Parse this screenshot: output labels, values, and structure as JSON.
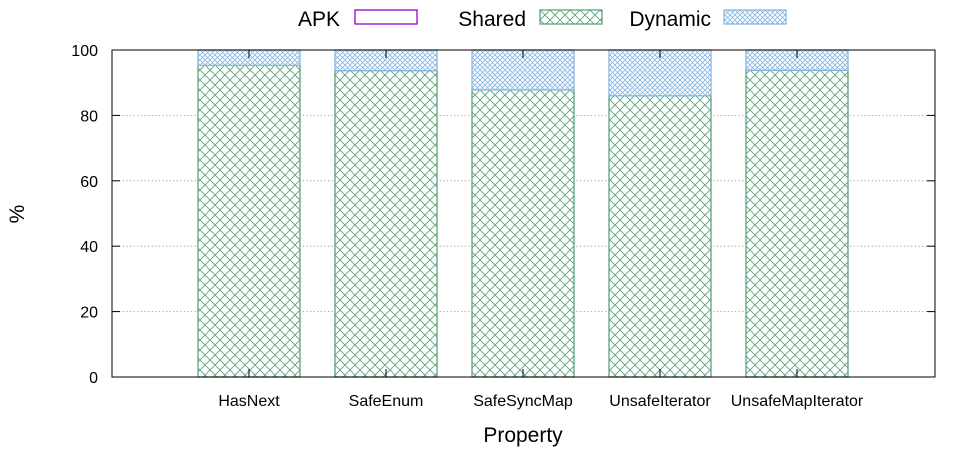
{
  "chart_data": {
    "type": "bar",
    "stacked": true,
    "categories": [
      "HasNext",
      "SafeEnum",
      "SafeSyncMap",
      "UnsafeIterator",
      "UnsafeMapIterator"
    ],
    "series": [
      {
        "name": "APK",
        "values": [
          0,
          0,
          0,
          0,
          0
        ],
        "color": "#9400d3",
        "pattern": "none"
      },
      {
        "name": "Shared",
        "values": [
          95.3,
          93.7,
          87.8,
          86.0,
          93.8
        ],
        "color": "#5ea27b",
        "pattern": "crosshatch"
      },
      {
        "name": "Dynamic",
        "values": [
          4.7,
          6.3,
          12.2,
          14.0,
          6.2
        ],
        "color": "#86b6e3",
        "pattern": "fine-crosshatch"
      }
    ],
    "xlabel": "Property",
    "ylabel": "%",
    "ylim": [
      0,
      100
    ],
    "yticks": [
      "0",
      "20",
      "40",
      "60",
      "80",
      "100"
    ],
    "grid": "horizontal-dotted",
    "legend_position": "top"
  }
}
